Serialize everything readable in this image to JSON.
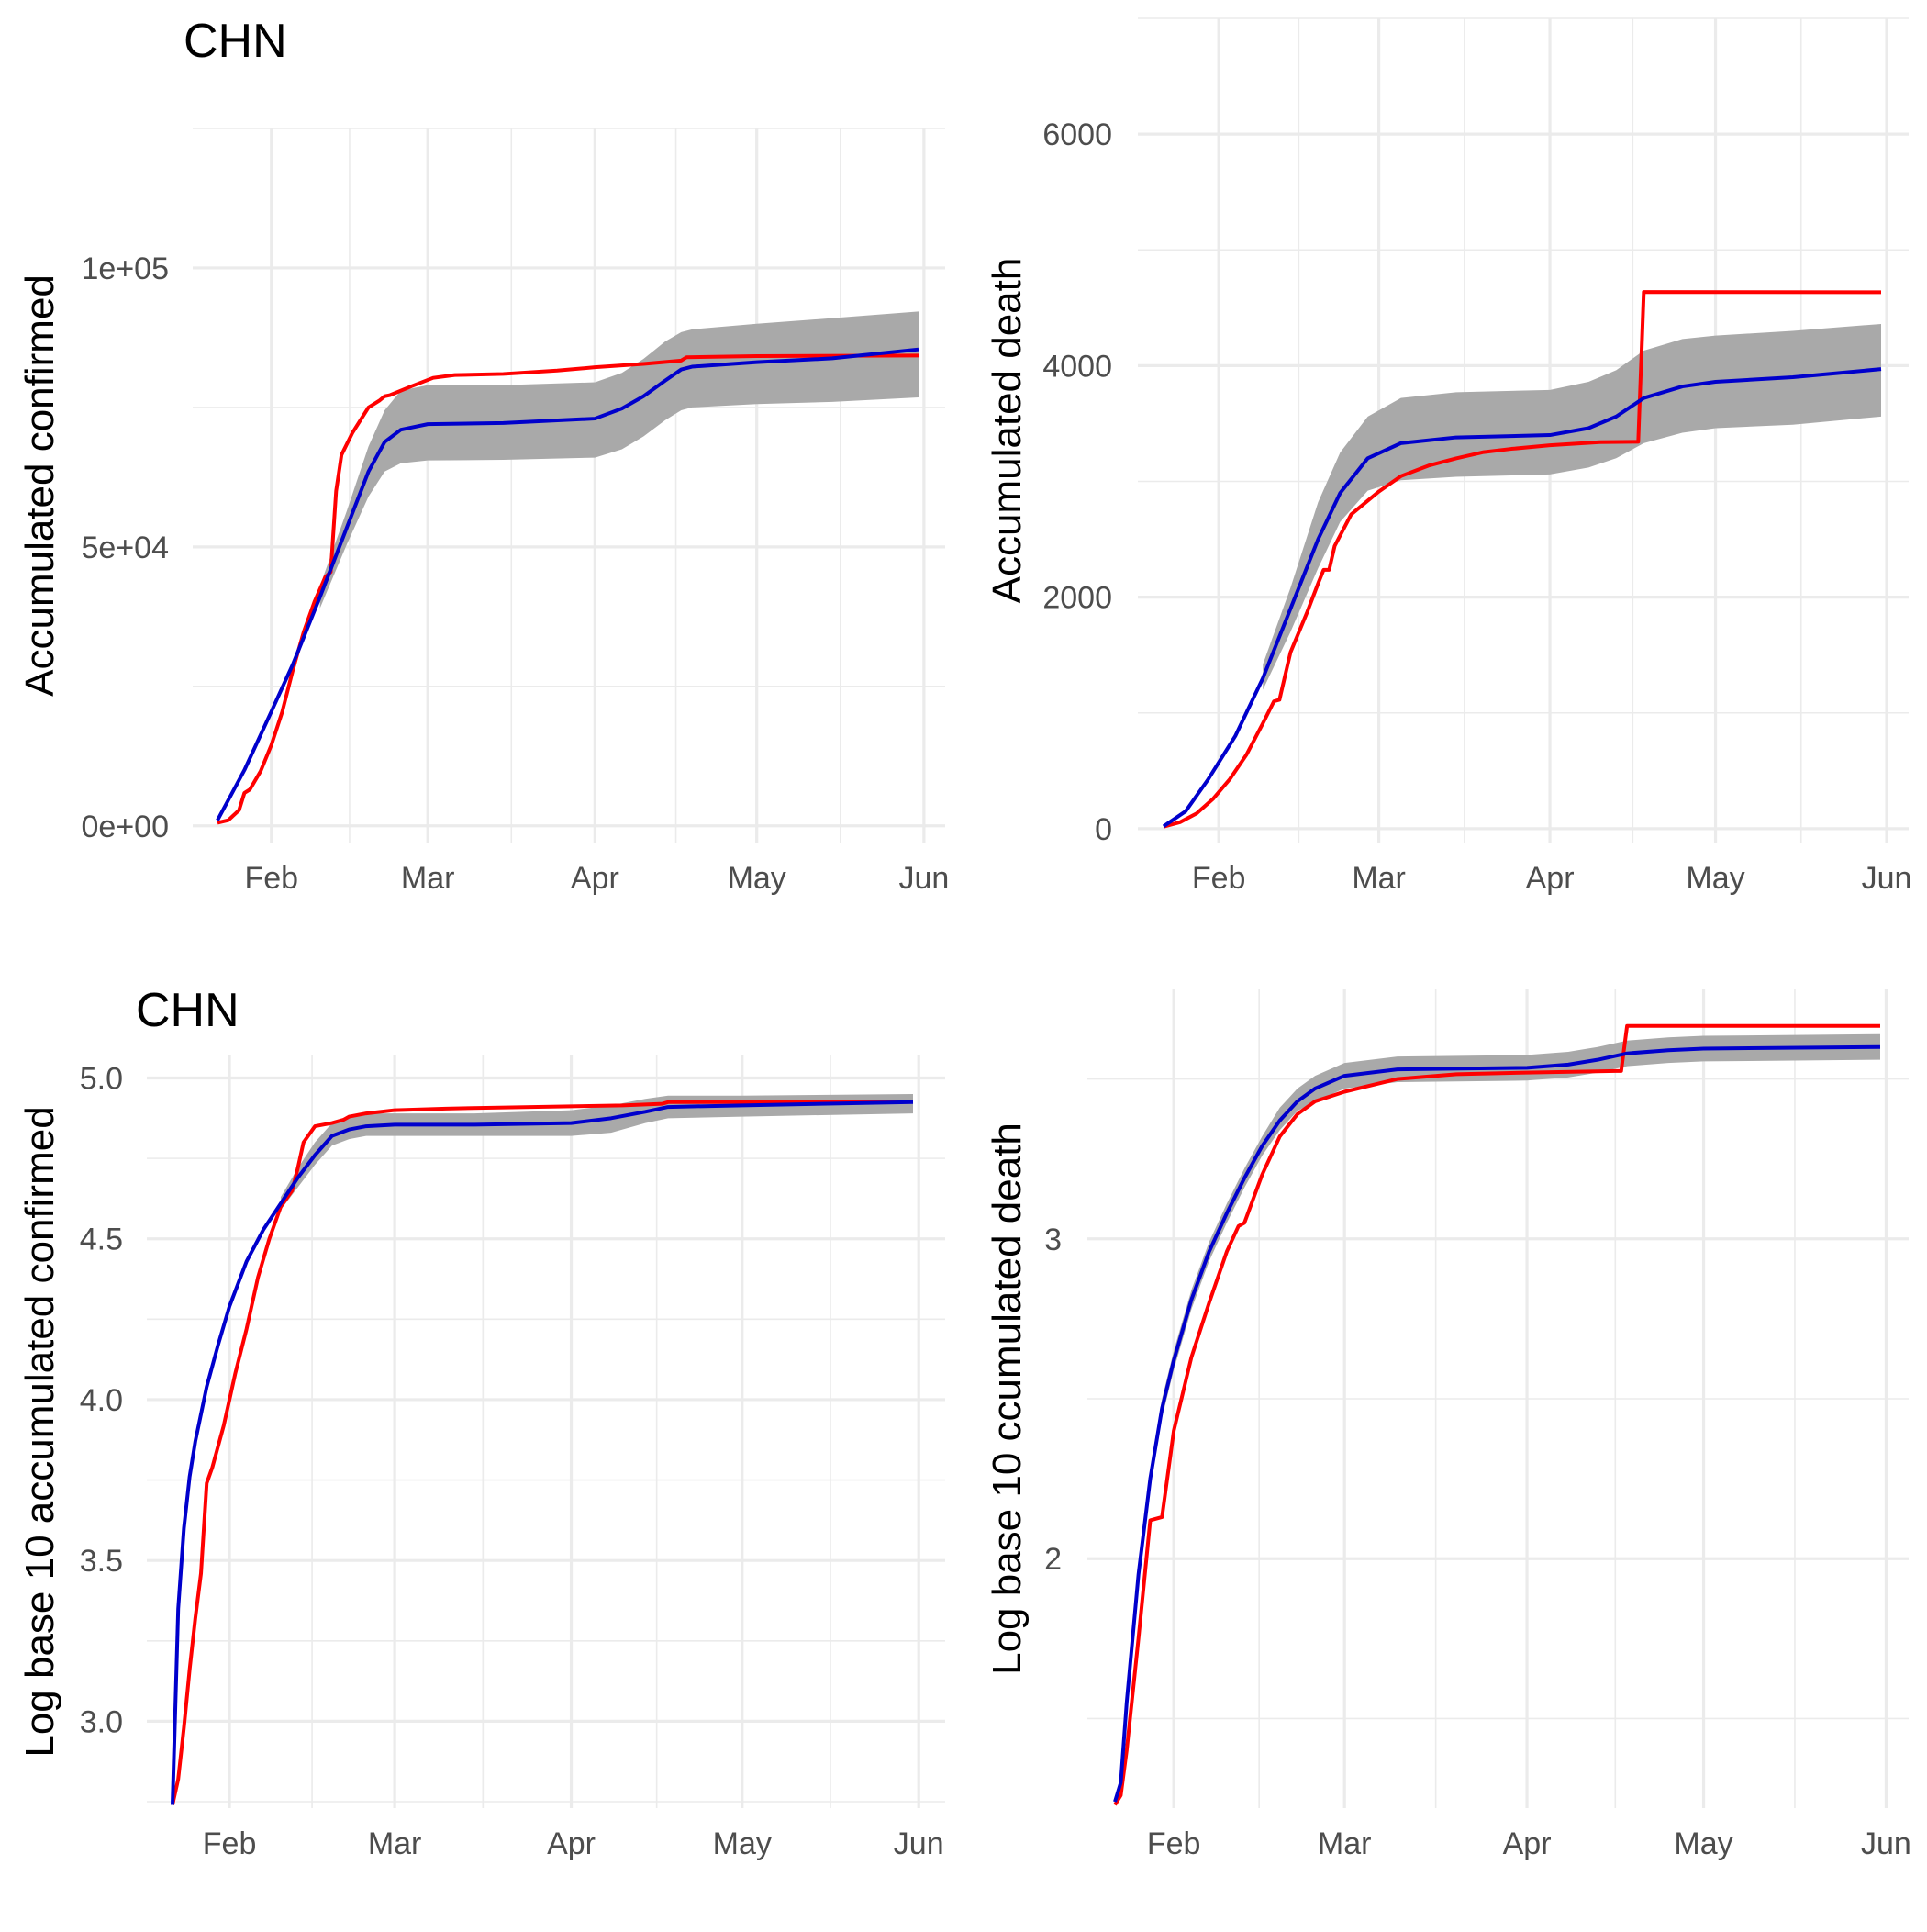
{
  "colors": {
    "observed": "#ff0000",
    "fitted": "#0000cc",
    "band": "#a9a9a9",
    "grid": "#ebebeb",
    "tick_text": "#4d4d4d"
  },
  "chart_data": [
    {
      "type": "line",
      "title": "CHN",
      "ylabel": "Accumulated confirmed",
      "xlabel": "",
      "x_ticks": [
        "Feb",
        "Mar",
        "Apr",
        "May",
        "Jun"
      ],
      "y_ticks": [
        "0e+00",
        "5e+04",
        "1e+05"
      ],
      "y_tick_values": [
        0,
        50000,
        100000
      ],
      "ylim": [
        -3000,
        125000
      ],
      "series": [
        {
          "role": "observed",
          "color": "#ff0000",
          "x": [
            "2020-01-22",
            "2020-01-24",
            "2020-01-26",
            "2020-01-27",
            "2020-01-28",
            "2020-01-30",
            "2020-02-01",
            "2020-02-03",
            "2020-02-05",
            "2020-02-07",
            "2020-02-09",
            "2020-02-11",
            "2020-02-12",
            "2020-02-13",
            "2020-02-14",
            "2020-02-16",
            "2020-02-19",
            "2020-02-21",
            "2020-02-22",
            "2020-02-23",
            "2020-02-27",
            "2020-03-02",
            "2020-03-06",
            "2020-03-15",
            "2020-03-25",
            "2020-04-01",
            "2020-04-10",
            "2020-04-17",
            "2020-04-18",
            "2020-05-01",
            "2020-05-31"
          ],
          "y": [
            548,
            1000,
            2800,
            5900,
            6500,
            9800,
            14500,
            20400,
            28000,
            34800,
            40200,
            44600,
            45500,
            60000,
            66500,
            70400,
            75000,
            76200,
            77000,
            77200,
            78800,
            80300,
            80800,
            81000,
            81600,
            82200,
            82800,
            83400,
            84000,
            84200,
            84300
          ]
        },
        {
          "role": "fitted",
          "color": "#0000cc",
          "x": [
            "2020-01-22",
            "2020-01-27",
            "2020-02-01",
            "2020-02-05",
            "2020-02-10",
            "2020-02-15",
            "2020-02-19",
            "2020-02-22",
            "2020-02-25",
            "2020-03-01",
            "2020-03-15",
            "2020-04-01",
            "2020-04-06",
            "2020-04-10",
            "2020-04-14",
            "2020-04-17",
            "2020-04-19",
            "2020-05-01",
            "2020-05-15",
            "2020-05-31"
          ],
          "y": [
            1000,
            10000,
            20500,
            29000,
            41000,
            53500,
            63500,
            68800,
            71000,
            72000,
            72200,
            73000,
            74800,
            77000,
            79800,
            81800,
            82300,
            83100,
            83800,
            85400
          ]
        },
        {
          "role": "band",
          "color": "#a9a9a9",
          "x": [
            "2020-02-10",
            "2020-02-15",
            "2020-02-19",
            "2020-02-22",
            "2020-02-25",
            "2020-03-01",
            "2020-03-15",
            "2020-04-01",
            "2020-04-06",
            "2020-04-10",
            "2020-04-14",
            "2020-04-17",
            "2020-04-19",
            "2020-05-01",
            "2020-05-15",
            "2020-05-31"
          ],
          "lower": [
            39000,
            50500,
            59000,
            63500,
            65000,
            65500,
            65600,
            66000,
            67500,
            69800,
            72700,
            74500,
            75000,
            75600,
            76000,
            76800
          ],
          "upper": [
            43000,
            56500,
            68000,
            74500,
            78000,
            79000,
            79000,
            79500,
            81200,
            83700,
            86800,
            88500,
            89000,
            90000,
            91000,
            92200
          ]
        }
      ]
    },
    {
      "type": "line",
      "title": "",
      "ylabel": "Accumulated death",
      "xlabel": "",
      "x_ticks": [
        "Feb",
        "Mar",
        "Apr",
        "May",
        "Jun"
      ],
      "y_ticks": [
        "0",
        "2000",
        "4000",
        "6000"
      ],
      "y_tick_values": [
        0,
        2000,
        4000,
        6000
      ],
      "ylim": [
        -120,
        7000
      ],
      "series": [
        {
          "role": "observed",
          "color": "#ff0000",
          "x": [
            "2020-01-22",
            "2020-01-25",
            "2020-01-28",
            "2020-01-31",
            "2020-02-03",
            "2020-02-06",
            "2020-02-09",
            "2020-02-11",
            "2020-02-12",
            "2020-02-14",
            "2020-02-17",
            "2020-02-19",
            "2020-02-20",
            "2020-02-21",
            "2020-02-22",
            "2020-02-25",
            "2020-03-01",
            "2020-03-05",
            "2020-03-10",
            "2020-03-15",
            "2020-03-20",
            "2020-03-25",
            "2020-04-01",
            "2020-04-10",
            "2020-04-16",
            "2020-04-17",
            "2020-04-18",
            "2020-05-31"
          ],
          "y": [
            17,
            56,
            132,
            259,
            427,
            637,
            910,
            1100,
            1113,
            1523,
            1868,
            2118,
            2236,
            2236,
            2442,
            2715,
            2912,
            3045,
            3136,
            3199,
            3253,
            3281,
            3312,
            3339,
            3342,
            3342,
            4636,
            4634
          ]
        },
        {
          "role": "fitted",
          "color": "#0000cc",
          "x": [
            "2020-01-22",
            "2020-01-26",
            "2020-01-30",
            "2020-02-04",
            "2020-02-09",
            "2020-02-14",
            "2020-02-19",
            "2020-02-23",
            "2020-02-28",
            "2020-03-05",
            "2020-03-15",
            "2020-04-01",
            "2020-04-08",
            "2020-04-13",
            "2020-04-18",
            "2020-04-25",
            "2020-05-01",
            "2020-05-15",
            "2020-05-31"
          ],
          "y": [
            20,
            150,
            420,
            800,
            1300,
            1900,
            2500,
            2900,
            3200,
            3330,
            3380,
            3400,
            3460,
            3560,
            3720,
            3820,
            3860,
            3900,
            3970
          ]
        },
        {
          "role": "band",
          "color": "#a9a9a9",
          "x": [
            "2020-02-09",
            "2020-02-14",
            "2020-02-19",
            "2020-02-23",
            "2020-02-28",
            "2020-03-05",
            "2020-03-15",
            "2020-04-01",
            "2020-04-08",
            "2020-04-13",
            "2020-04-18",
            "2020-04-25",
            "2020-05-01",
            "2020-05-15",
            "2020-05-31"
          ],
          "lower": [
            1200,
            1700,
            2250,
            2650,
            2920,
            3010,
            3040,
            3060,
            3120,
            3200,
            3330,
            3420,
            3460,
            3490,
            3560
          ],
          "upper": [
            1420,
            2080,
            2820,
            3250,
            3560,
            3720,
            3770,
            3790,
            3860,
            3960,
            4130,
            4230,
            4260,
            4300,
            4360
          ]
        }
      ]
    },
    {
      "type": "line",
      "title": "CHN",
      "ylabel": "Log base 10 accumulated confirmed",
      "xlabel": "",
      "x_ticks": [
        "Feb",
        "Mar",
        "Apr",
        "May",
        "Jun"
      ],
      "y_ticks": [
        "3.0",
        "3.5",
        "4.0",
        "4.5",
        "5.0"
      ],
      "y_tick_values": [
        3.0,
        3.5,
        4.0,
        4.5,
        5.0
      ],
      "ylim": [
        2.73,
        5.07
      ],
      "series": [
        {
          "role": "observed",
          "color": "#ff0000",
          "x": [
            "2020-01-22",
            "2020-01-23",
            "2020-01-24",
            "2020-01-25",
            "2020-01-26",
            "2020-01-27",
            "2020-01-28",
            "2020-01-29",
            "2020-01-31",
            "2020-02-02",
            "2020-02-04",
            "2020-02-06",
            "2020-02-08",
            "2020-02-10",
            "2020-02-12",
            "2020-02-13",
            "2020-02-14",
            "2020-02-16",
            "2020-02-19",
            "2020-02-21",
            "2020-02-22",
            "2020-02-25",
            "2020-03-01",
            "2020-03-10",
            "2020-03-25",
            "2020-04-10",
            "2020-04-17",
            "2020-04-18",
            "2020-05-31"
          ],
          "y": [
            2.74,
            2.82,
            2.98,
            3.16,
            3.32,
            3.46,
            3.74,
            3.79,
            3.92,
            4.08,
            4.22,
            4.38,
            4.5,
            4.6,
            4.65,
            4.72,
            4.8,
            4.85,
            4.86,
            4.87,
            4.88,
            4.89,
            4.9,
            4.905,
            4.91,
            4.915,
            4.92,
            4.925,
            4.926
          ]
        },
        {
          "role": "fitted",
          "color": "#0000cc",
          "x": [
            "2020-01-22",
            "2020-01-23",
            "2020-01-24",
            "2020-01-25",
            "2020-01-26",
            "2020-01-28",
            "2020-01-30",
            "2020-02-01",
            "2020-02-04",
            "2020-02-07",
            "2020-02-10",
            "2020-02-13",
            "2020-02-16",
            "2020-02-19",
            "2020-02-22",
            "2020-02-25",
            "2020-03-01",
            "2020-03-15",
            "2020-04-01",
            "2020-04-08",
            "2020-04-14",
            "2020-04-18",
            "2020-05-01",
            "2020-05-31"
          ],
          "y": [
            2.74,
            3.35,
            3.6,
            3.76,
            3.87,
            4.04,
            4.17,
            4.29,
            4.43,
            4.53,
            4.61,
            4.69,
            4.76,
            4.82,
            4.84,
            4.85,
            4.855,
            4.855,
            4.86,
            4.875,
            4.895,
            4.91,
            4.915,
            4.925
          ]
        },
        {
          "role": "band",
          "color": "#a9a9a9",
          "x": [
            "2020-02-10",
            "2020-02-13",
            "2020-02-16",
            "2020-02-19",
            "2020-02-22",
            "2020-02-25",
            "2020-03-01",
            "2020-03-15",
            "2020-04-01",
            "2020-04-08",
            "2020-04-14",
            "2020-04-18",
            "2020-05-01",
            "2020-05-31"
          ],
          "lower": [
            4.59,
            4.66,
            4.73,
            4.79,
            4.81,
            4.82,
            4.82,
            4.82,
            4.82,
            4.83,
            4.86,
            4.875,
            4.88,
            4.89
          ],
          "upper": [
            4.63,
            4.72,
            4.8,
            4.86,
            4.88,
            4.89,
            4.89,
            4.89,
            4.9,
            4.915,
            4.935,
            4.945,
            4.945,
            4.95
          ]
        }
      ]
    },
    {
      "type": "line",
      "title": "",
      "ylabel": "Log base 10 ccumulated death",
      "xlabel": "",
      "x_ticks": [
        "Feb",
        "Mar",
        "Apr",
        "May",
        "Jun"
      ],
      "y_ticks": [
        "2",
        "3"
      ],
      "y_tick_values": [
        2,
        3
      ],
      "ylim": [
        1.22,
        3.78
      ],
      "series": [
        {
          "role": "observed",
          "color": "#ff0000",
          "x": [
            "2020-01-22",
            "2020-01-23",
            "2020-01-24",
            "2020-01-26",
            "2020-01-28",
            "2020-01-30",
            "2020-02-01",
            "2020-02-04",
            "2020-02-07",
            "2020-02-10",
            "2020-02-12",
            "2020-02-13",
            "2020-02-16",
            "2020-02-19",
            "2020-02-22",
            "2020-02-25",
            "2020-03-01",
            "2020-03-10",
            "2020-03-20",
            "2020-04-01",
            "2020-04-16",
            "2020-04-17",
            "2020-04-18",
            "2020-05-31"
          ],
          "y": [
            1.23,
            1.26,
            1.4,
            1.75,
            2.12,
            2.13,
            2.4,
            2.63,
            2.8,
            2.96,
            3.04,
            3.05,
            3.2,
            3.32,
            3.39,
            3.43,
            3.46,
            3.5,
            3.515,
            3.52,
            3.525,
            3.525,
            3.666,
            3.666
          ]
        },
        {
          "role": "fitted",
          "color": "#0000cc",
          "x": [
            "2020-01-22",
            "2020-01-23",
            "2020-01-24",
            "2020-01-26",
            "2020-01-28",
            "2020-01-30",
            "2020-02-01",
            "2020-02-04",
            "2020-02-07",
            "2020-02-10",
            "2020-02-13",
            "2020-02-16",
            "2020-02-19",
            "2020-02-22",
            "2020-02-25",
            "2020-03-01",
            "2020-03-10",
            "2020-04-01",
            "2020-04-08",
            "2020-04-13",
            "2020-04-18",
            "2020-04-25",
            "2020-05-01",
            "2020-05-31"
          ],
          "y": [
            1.24,
            1.3,
            1.55,
            1.95,
            2.25,
            2.47,
            2.62,
            2.81,
            2.96,
            3.08,
            3.19,
            3.29,
            3.37,
            3.43,
            3.47,
            3.51,
            3.53,
            3.535,
            3.545,
            3.56,
            3.58,
            3.59,
            3.595,
            3.6
          ]
        },
        {
          "role": "band",
          "color": "#a9a9a9",
          "x": [
            "2020-01-24",
            "2020-01-26",
            "2020-01-28",
            "2020-01-30",
            "2020-02-01",
            "2020-02-04",
            "2020-02-07",
            "2020-02-10",
            "2020-02-13",
            "2020-02-16",
            "2020-02-19",
            "2020-02-22",
            "2020-02-25",
            "2020-03-01",
            "2020-03-10",
            "2020-04-01",
            "2020-04-08",
            "2020-04-13",
            "2020-04-18",
            "2020-04-25",
            "2020-05-01",
            "2020-05-31"
          ],
          "lower": [
            1.52,
            1.92,
            2.22,
            2.44,
            2.59,
            2.78,
            2.93,
            3.05,
            3.16,
            3.26,
            3.34,
            3.4,
            3.43,
            3.47,
            3.49,
            3.495,
            3.505,
            3.52,
            3.54,
            3.55,
            3.555,
            3.56
          ],
          "upper": [
            1.58,
            1.98,
            2.28,
            2.5,
            2.65,
            2.84,
            2.99,
            3.11,
            3.22,
            3.32,
            3.41,
            3.47,
            3.51,
            3.55,
            3.57,
            3.575,
            3.585,
            3.6,
            3.62,
            3.63,
            3.635,
            3.64
          ]
        }
      ]
    }
  ]
}
